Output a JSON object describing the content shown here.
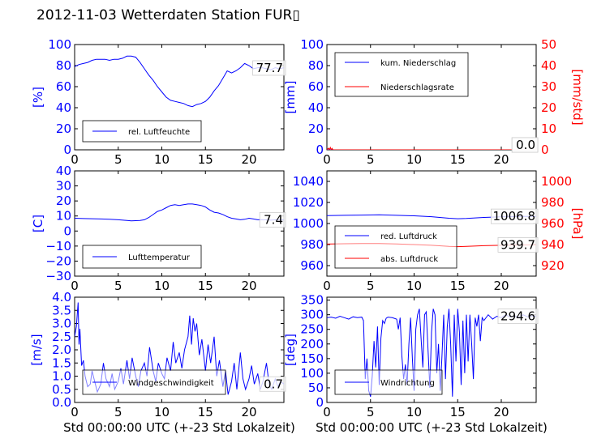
{
  "title": "2012-11-03 Wetterdaten Station FUR▯",
  "colors": {
    "blue": "#0000ff",
    "red": "#ff0000",
    "black": "#000000"
  },
  "chart_data": [
    {
      "id": "humidity",
      "type": "line",
      "ylabel": "[%]",
      "ylim": [
        0,
        100
      ],
      "yticks": [
        "0",
        "20",
        "40",
        "60",
        "80",
        "100"
      ],
      "xlim": [
        0,
        24
      ],
      "xticks": [
        "0",
        "5",
        "10",
        "15",
        "20"
      ],
      "xlabel": "",
      "legend": {
        "placement": "lower-left",
        "entries": [
          {
            "name": "rel. Luftfeuchte",
            "color": "#0000ff"
          }
        ]
      },
      "last_value": "77.7",
      "series": [
        {
          "name": "rel. Luftfeuchte",
          "color": "#0000ff",
          "x": [
            0,
            0.5,
            1,
            1.5,
            2,
            2.5,
            3,
            3.5,
            4,
            4.5,
            5,
            5.5,
            6,
            6.5,
            7,
            7.5,
            8,
            8.5,
            9,
            9.5,
            10,
            10.5,
            11,
            11.5,
            12,
            12.5,
            13,
            13.5,
            14,
            14.5,
            15,
            15.5,
            16,
            16.5,
            17,
            17.5,
            18,
            18.5,
            19,
            19.5,
            20,
            20.5,
            21,
            21.5,
            22,
            22.5,
            23,
            23.5,
            24
          ],
          "y": [
            79,
            81,
            82,
            83,
            85,
            86,
            86,
            86,
            85,
            86,
            86,
            87,
            89,
            89,
            88,
            83,
            77,
            71,
            66,
            60,
            55,
            50,
            47,
            46,
            45,
            44,
            42,
            41,
            43,
            44,
            46,
            50,
            56,
            61,
            68,
            75,
            73,
            75,
            78,
            82,
            80,
            77,
            78,
            78,
            77,
            76,
            78,
            77,
            78
          ]
        }
      ]
    },
    {
      "id": "precip",
      "type": "line",
      "ylabel": "[mm]",
      "ylim": [
        0,
        100
      ],
      "yticks": [
        "0",
        "20",
        "40",
        "60",
        "80",
        "100"
      ],
      "y2label": "[mm/std]",
      "y2lim": [
        0,
        50
      ],
      "y2ticks": [
        "0",
        "10",
        "20",
        "30",
        "40",
        "50"
      ],
      "xlim": [
        0,
        24
      ],
      "xticks": [
        "0",
        "5",
        "10",
        "15",
        "20"
      ],
      "xlabel": "",
      "legend": {
        "placement": "upper-left",
        "entries": [
          {
            "name": "kum. Niederschlag",
            "color": "#0000ff"
          },
          {
            "name": "Niederschlagsrate",
            "color": "#ff0000"
          }
        ]
      },
      "last_values": [
        "0.0",
        "0.0"
      ],
      "series": [
        {
          "name": "kum. Niederschlag",
          "color": "#0000ff",
          "axis": "left",
          "x": [
            0,
            24
          ],
          "y": [
            0,
            0
          ]
        },
        {
          "name": "Niederschlagsrate",
          "color": "#ff0000",
          "axis": "right",
          "x": [
            0,
            0.2,
            0.3,
            0.4,
            0.5,
            0.6,
            0.7,
            1,
            5,
            24
          ],
          "y": [
            0,
            0.8,
            0,
            1.1,
            0,
            0.7,
            0,
            0,
            0,
            0
          ]
        }
      ]
    },
    {
      "id": "temperature",
      "type": "line",
      "ylabel": "[C]",
      "ylim": [
        -30,
        40
      ],
      "yticks": [
        "−30",
        "−20",
        "−10",
        "0",
        "10",
        "20",
        "30",
        "40"
      ],
      "xlim": [
        0,
        24
      ],
      "xticks": [
        "0",
        "5",
        "10",
        "15",
        "20"
      ],
      "xlabel": "",
      "legend": {
        "placement": "lower-left",
        "entries": [
          {
            "name": "Lufttemperatur",
            "color": "#0000ff"
          }
        ]
      },
      "last_value": "7.4",
      "series": [
        {
          "name": "Lufttemperatur",
          "color": "#0000ff",
          "x": [
            0,
            1,
            2,
            3,
            4,
            5,
            6,
            6.5,
            7,
            7.5,
            8,
            8.5,
            9,
            9.5,
            10,
            10.5,
            11,
            11.5,
            12,
            12.5,
            13,
            13.5,
            14,
            14.5,
            15,
            15.5,
            16,
            16.5,
            17,
            17.5,
            18,
            18.5,
            19,
            19.5,
            20,
            20.5,
            21,
            21.5,
            22,
            22.5,
            23,
            23.5,
            24
          ],
          "y": [
            8.5,
            8.3,
            8.2,
            8,
            7.8,
            7.5,
            7,
            6.8,
            6.9,
            7,
            7.5,
            9,
            11,
            13,
            14,
            15.5,
            17,
            17.5,
            17,
            17.5,
            18,
            18,
            17.5,
            17,
            16,
            14,
            12.5,
            12,
            11,
            9.5,
            8.5,
            8,
            7.5,
            7.8,
            8.5,
            8,
            7.5,
            7.6,
            7.4,
            7.2,
            7.5,
            7.4,
            7.4
          ]
        }
      ]
    },
    {
      "id": "pressure",
      "type": "line",
      "ylabel": "",
      "ylim": [
        950,
        1050
      ],
      "yticks": [
        "960",
        "980",
        "1000",
        "1020",
        "1040"
      ],
      "y2label": "[hPa]",
      "y2lim": [
        910,
        1010
      ],
      "y2ticks": [
        "920",
        "940",
        "960",
        "980",
        "1000"
      ],
      "xlim": [
        0,
        24
      ],
      "xticks": [
        "0",
        "5",
        "10",
        "15",
        "20"
      ],
      "xlabel": "",
      "legend": {
        "placement": "lower-left",
        "entries": [
          {
            "name": "red. Luftdruck",
            "color": "#0000ff"
          },
          {
            "name": "abs. Luftdruck",
            "color": "#ff0000"
          }
        ]
      },
      "last_values": [
        "1006.8",
        "939.7"
      ],
      "series": [
        {
          "name": "red. Luftdruck",
          "color": "#0000ff",
          "axis": "left",
          "x": [
            0,
            2,
            4,
            6,
            8,
            10,
            12,
            14,
            15,
            16,
            18,
            20,
            22,
            24
          ],
          "y": [
            1007.5,
            1007.8,
            1008,
            1008.2,
            1007.8,
            1007.3,
            1006.5,
            1005,
            1004.5,
            1004.8,
            1005.8,
            1006.4,
            1006.7,
            1006.8
          ]
        },
        {
          "name": "abs. Luftdruck",
          "color": "#ff0000",
          "axis": "right",
          "x": [
            0,
            2,
            4,
            6,
            8,
            10,
            12,
            14,
            15,
            16,
            18,
            20,
            22,
            24
          ],
          "y": [
            940.5,
            940.8,
            941,
            941,
            940.6,
            940,
            939.3,
            938.2,
            938,
            938.2,
            938.9,
            939.3,
            939.6,
            939.7
          ]
        }
      ]
    },
    {
      "id": "windspeed",
      "type": "line",
      "ylabel": "[m/s]",
      "ylim": [
        0,
        4
      ],
      "yticks": [
        "0.0",
        "0.5",
        "1.0",
        "1.5",
        "2.0",
        "2.5",
        "3.0",
        "3.5",
        "4.0"
      ],
      "xlim": [
        0,
        24
      ],
      "xticks": [
        "0",
        "5",
        "10",
        "15",
        "20"
      ],
      "xlabel": "Std 00:00:00 UTC (+-23 Std Lokalzeit)",
      "legend": {
        "placement": "lower-left",
        "entries": [
          {
            "name": "Windgeschwindigkeit",
            "color": "#0000ff"
          }
        ]
      },
      "last_value": "0.7",
      "series": [
        {
          "name": "Windgeschwindigkeit",
          "color": "#0000ff",
          "x": [
            0,
            0.2,
            0.4,
            0.5,
            0.6,
            0.8,
            1,
            1.2,
            1.5,
            1.8,
            2,
            2.3,
            2.6,
            3,
            3.3,
            3.6,
            4,
            4.3,
            4.6,
            5,
            5.3,
            5.6,
            6,
            6.3,
            6.6,
            7,
            7.3,
            7.6,
            8,
            8.3,
            8.6,
            9,
            9.3,
            9.6,
            10,
            10.3,
            10.6,
            11,
            11.3,
            11.6,
            12,
            12.3,
            12.6,
            13,
            13.2,
            13.4,
            13.6,
            13.8,
            14,
            14.3,
            14.6,
            15,
            15.3,
            15.6,
            16,
            16.3,
            16.6,
            17,
            17.3,
            17.6,
            18,
            18.3,
            18.6,
            19,
            19.3,
            19.6,
            20,
            20.3,
            20.6,
            21,
            21.3,
            21.6,
            22,
            22.3,
            22.6,
            23,
            23.3,
            23.6,
            24
          ],
          "y": [
            2.5,
            2.9,
            3.8,
            2.2,
            2.8,
            1.4,
            1.6,
            1,
            0.6,
            0.7,
            1.2,
            0.8,
            0.4,
            0.7,
            1.5,
            0.9,
            0.6,
            1.1,
            0.5,
            0.8,
            1.3,
            0.7,
            1.6,
            0.9,
            1.7,
            1,
            0.6,
            1.2,
            1.5,
            1,
            2.1,
            1.2,
            0.8,
            1.5,
            1.1,
            0.9,
            1.7,
            1.2,
            2.3,
            1.5,
            1.9,
            1.3,
            2,
            2.5,
            3.3,
            2.2,
            3.2,
            2.7,
            3,
            1.8,
            2.4,
            1.2,
            2.2,
            1.5,
            2.5,
            1,
            1.6,
            0.6,
            1.2,
            0.3,
            0.8,
            1.5,
            0.5,
            1.9,
            0.9,
            0.5,
            0.9,
            1.4,
            0.7,
            1.1,
            0.5,
            0.8,
            1.5,
            0.7,
            0.5,
            0.9,
            0.6,
            0.8,
            0.7
          ]
        }
      ]
    },
    {
      "id": "winddir",
      "type": "line",
      "ylabel": "[deg]",
      "ylim": [
        0,
        360
      ],
      "yticks": [
        "0",
        "50",
        "100",
        "150",
        "200",
        "250",
        "300",
        "350"
      ],
      "xlim": [
        0,
        24
      ],
      "xticks": [
        "0",
        "5",
        "10",
        "15",
        "20"
      ],
      "xlabel": "Std 00:00:00 UTC (+-23 Std Lokalzeit)",
      "legend": {
        "placement": "lower-left",
        "entries": [
          {
            "name": "Windrichtung",
            "color": "#0000ff"
          }
        ]
      },
      "last_value": "294.6",
      "series": [
        {
          "name": "Windrichtung",
          "color": "#0000ff",
          "x": [
            0,
            0.5,
            1,
            1.5,
            2,
            2.5,
            3,
            3.5,
            4,
            4.2,
            4.4,
            4.6,
            4.8,
            5,
            5.2,
            5.4,
            5.6,
            5.8,
            6,
            6.2,
            6.4,
            6.6,
            6.8,
            7,
            7.5,
            8,
            8.2,
            8.4,
            8.6,
            8.8,
            9,
            9.2,
            9.4,
            9.6,
            9.8,
            10,
            10.2,
            10.4,
            10.6,
            10.8,
            11,
            11.2,
            11.4,
            11.6,
            11.8,
            12,
            12.2,
            12.4,
            12.6,
            12.8,
            13,
            13.2,
            13.4,
            13.6,
            13.8,
            14,
            14.2,
            14.4,
            14.6,
            14.8,
            15,
            15.2,
            15.4,
            15.6,
            15.8,
            16,
            16.2,
            16.4,
            16.6,
            16.8,
            17,
            17.2,
            17.4,
            17.6,
            17.8,
            18,
            18.5,
            19,
            19.5,
            20,
            20.5,
            21,
            21.5,
            22,
            22.5,
            23,
            23.5,
            24
          ],
          "y": [
            290,
            292,
            288,
            295,
            290,
            285,
            293,
            290,
            292,
            280,
            80,
            150,
            40,
            20,
            90,
            210,
            120,
            260,
            60,
            220,
            280,
            270,
            288,
            292,
            290,
            285,
            250,
            290,
            160,
            80,
            130,
            60,
            200,
            290,
            150,
            40,
            250,
            300,
            320,
            220,
            120,
            300,
            310,
            180,
            50,
            240,
            320,
            300,
            100,
            200,
            40,
            160,
            300,
            80,
            260,
            320,
            200,
            20,
            300,
            140,
            320,
            240,
            60,
            280,
            100,
            300,
            140,
            300,
            200,
            80,
            290,
            260,
            300,
            210,
            290,
            280,
            300,
            285,
            295,
            290,
            300,
            292,
            296,
            290,
            300,
            293,
            296,
            294.6
          ]
        }
      ]
    }
  ]
}
